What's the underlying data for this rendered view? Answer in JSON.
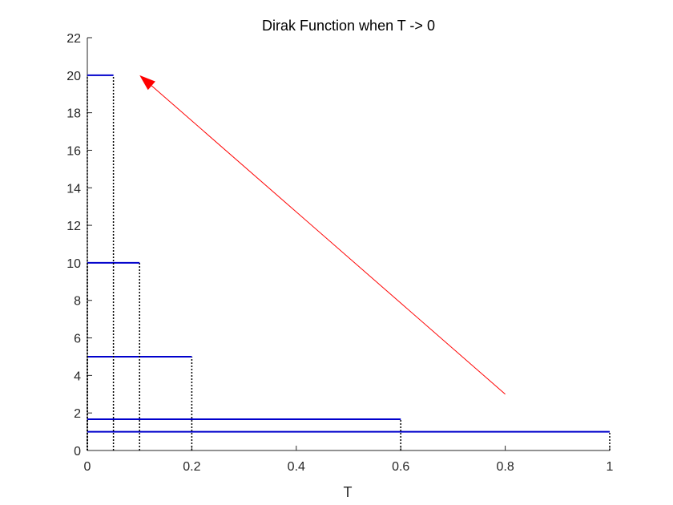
{
  "chart_data": {
    "type": "line",
    "title": "Dirak Function when T -> 0",
    "xlabel": "T",
    "ylabel": "",
    "xlim": [
      0,
      1
    ],
    "ylim": [
      0,
      22
    ],
    "xticks": [
      "0",
      "0.2",
      "0.4",
      "0.6",
      "0.8",
      "1"
    ],
    "yticks": [
      "0",
      "2",
      "4",
      "6",
      "8",
      "10",
      "12",
      "14",
      "16",
      "18",
      "20",
      "22"
    ],
    "grid": false,
    "series": [
      {
        "T": 1.0,
        "height": 1.0
      },
      {
        "T": 0.6,
        "height": 1.667
      },
      {
        "T": 0.2,
        "height": 5.0
      },
      {
        "T": 0.1,
        "height": 10.0
      },
      {
        "T": 0.05,
        "height": 20.0
      }
    ],
    "arrow": {
      "from": [
        0.8,
        3.0
      ],
      "to": [
        0.1,
        20.0
      ]
    },
    "colors": {
      "pulse": "#0000cc",
      "vertical": "#000000",
      "arrow": "#ff0000",
      "axis": "#262626"
    }
  }
}
